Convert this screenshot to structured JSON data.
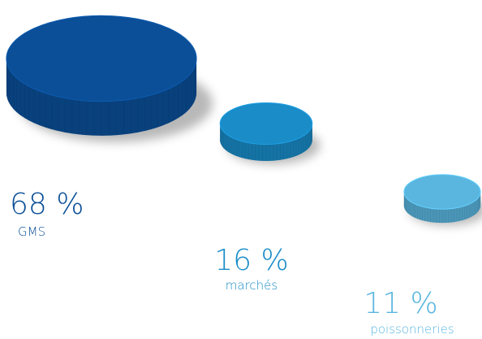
{
  "chart_data": {
    "type": "puck",
    "categories": [
      "GMS",
      "marchés",
      "poissonneries"
    ],
    "values": [
      68,
      16,
      11
    ],
    "value_labels": [
      "68 %",
      "16 %",
      "11 %"
    ],
    "colors": [
      "#0b4f98",
      "#1a8cc8",
      "#5ab6df"
    ]
  }
}
